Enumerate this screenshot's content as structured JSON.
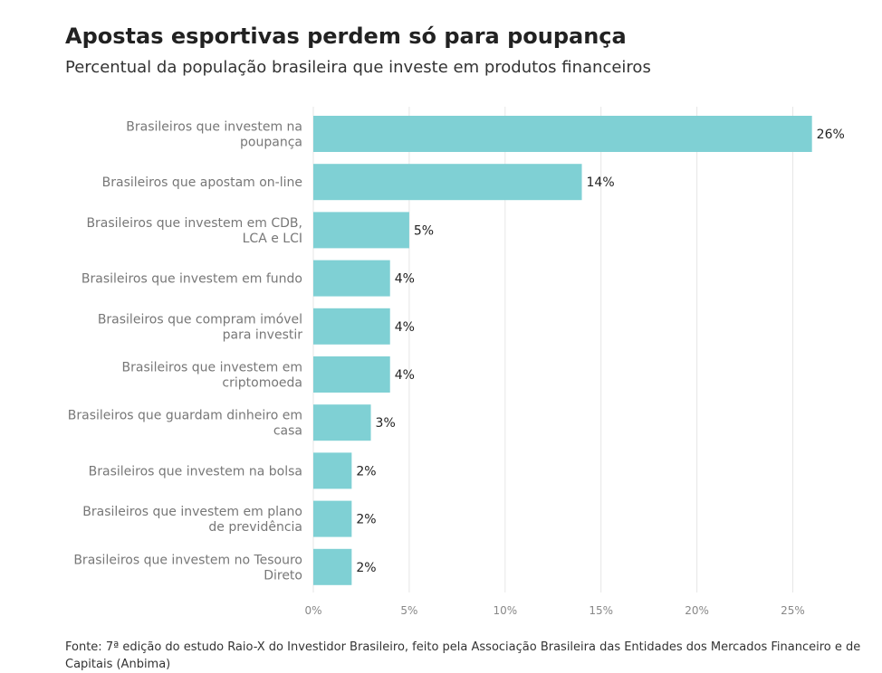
{
  "header": {
    "title": "Apostas esportivas perdem só para poupança",
    "subtitle": "Percentual da população brasileira que investe em produtos financeiros"
  },
  "footer": {
    "source": "Fonte: 7ª edição do estudo Raio-X do Investidor Brasileiro, feito pela Associação Brasileira das Entidades dos Mercados Financeiro e de Capitais (Anbima)"
  },
  "chart_data": {
    "type": "bar",
    "orientation": "horizontal",
    "title": "Apostas esportivas perdem só para poupança",
    "subtitle": "Percentual da população brasileira que investe em produtos financeiros",
    "categories": [
      [
        "Brasileiros que investem na",
        "poupança"
      ],
      [
        "Brasileiros que apostam on-line"
      ],
      [
        "Brasileiros que investem em CDB,",
        "LCA e LCI"
      ],
      [
        "Brasileiros que investem em fundo"
      ],
      [
        "Brasileiros que compram imóvel",
        "para investir"
      ],
      [
        "Brasileiros que investem em",
        "criptomoeda"
      ],
      [
        "Brasileiros que guardam dinheiro em",
        "casa"
      ],
      [
        "Brasileiros que investem na bolsa"
      ],
      [
        "Brasileiros que investem em plano",
        "de previdência"
      ],
      [
        "Brasileiros que investem no Tesouro",
        "Direto"
      ]
    ],
    "values": [
      26,
      14,
      5,
      4,
      4,
      4,
      3,
      2,
      2,
      2
    ],
    "data_labels": [
      "26%",
      "14%",
      "5%",
      "4%",
      "4%",
      "4%",
      "3%",
      "2%",
      "2%",
      "2%"
    ],
    "xlim": [
      0,
      27
    ],
    "xticks": [
      0,
      5,
      10,
      15,
      20,
      25
    ],
    "xtick_labels": [
      "0%",
      "5%",
      "10%",
      "15%",
      "20%",
      "25%"
    ],
    "grid": "vertical",
    "bar_color": "#7fd0d4",
    "label_color": "#777777",
    "value_label_color": "#222222",
    "grid_color": "#e6e6e6"
  }
}
